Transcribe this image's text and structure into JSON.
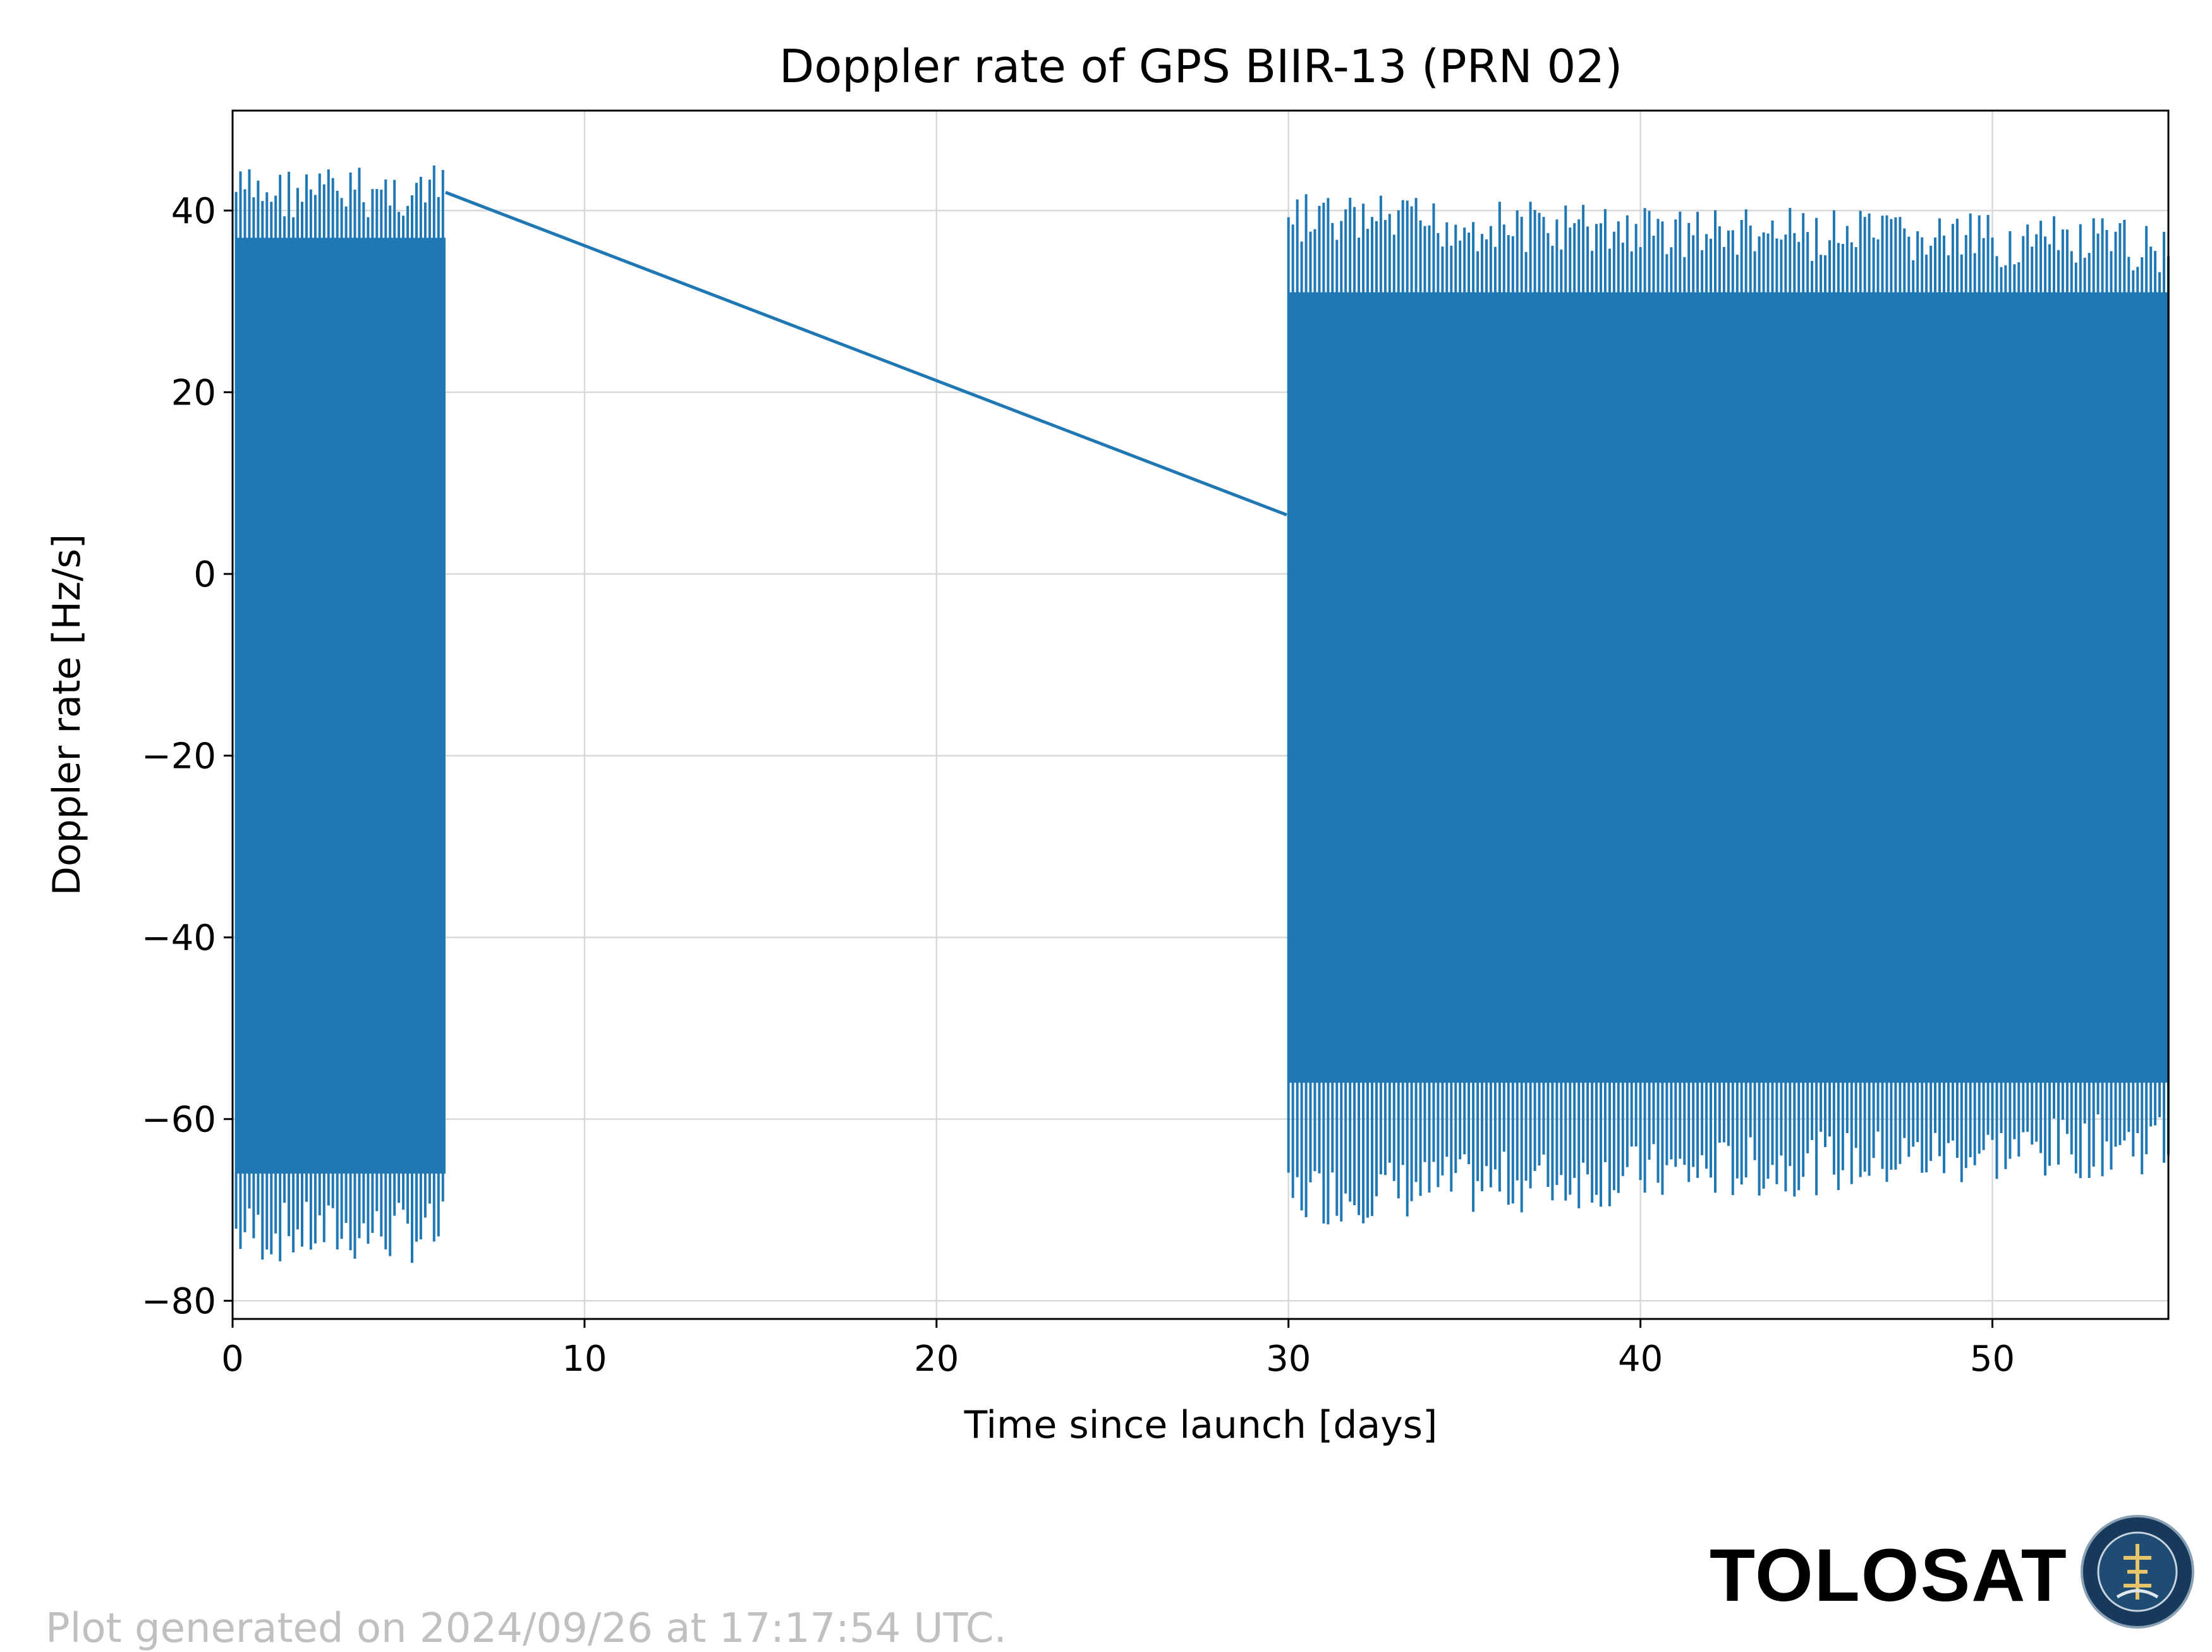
{
  "chart_data": {
    "type": "line",
    "title": "Doppler rate of GPS BIIR-13 (PRN 02)",
    "xlabel": "Time since launch [days]",
    "ylabel": "Doppler rate [Hz/s]",
    "xlim": [
      0,
      55
    ],
    "ylim": [
      -82,
      51
    ],
    "xticks": [
      0,
      10,
      20,
      30,
      40,
      50
    ],
    "yticks": [
      -80,
      -60,
      -40,
      -20,
      0,
      20,
      40
    ],
    "grid": true,
    "color": "#1f77b4",
    "series": [
      {
        "segments": [
          {
            "x_start": 0.1,
            "x_end": 6.05,
            "y_max": 45,
            "y_min": -76,
            "period_days": 0.125
          },
          {
            "x_start": 6.05,
            "x_end": 29.95,
            "y_start": 42,
            "y_end": 6.5
          },
          {
            "x_start": 30.0,
            "x_end": 55.0,
            "y_max_start": 42,
            "y_max_end": 39,
            "y_min_start": -72,
            "y_min_end": -66,
            "period_days": 0.125
          }
        ]
      }
    ]
  },
  "footer": {
    "generated_text": "Plot generated on 2024/09/26 at 17:17:54 UTC.",
    "logo_text": "TOLOSAT",
    "seal_text": "ASTRE·CC SUPAERO·TOLOSAT"
  }
}
